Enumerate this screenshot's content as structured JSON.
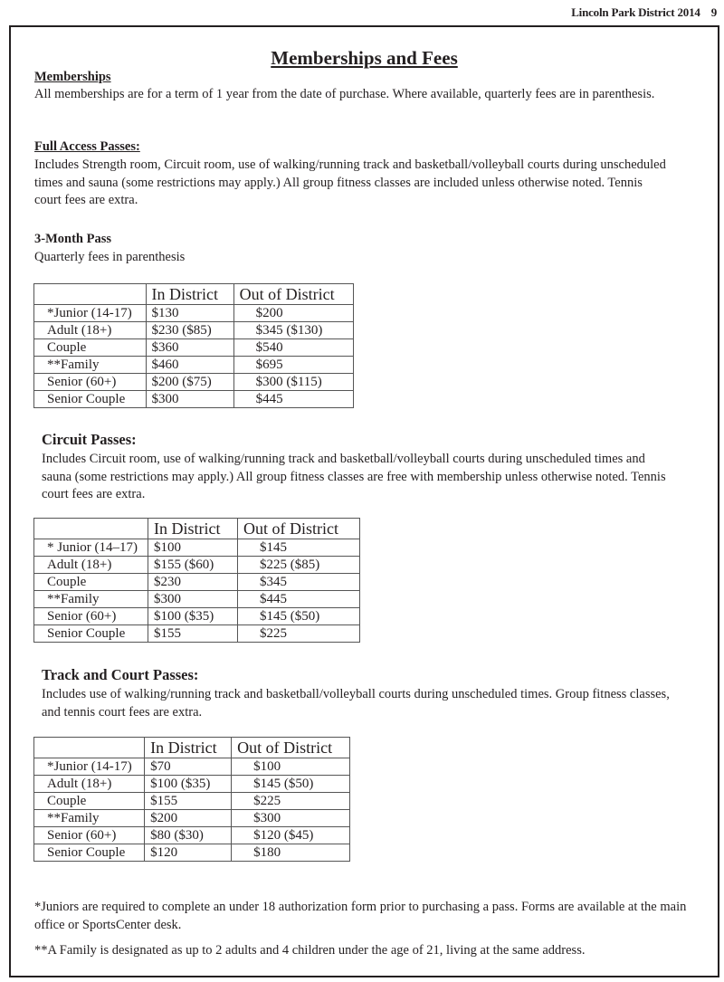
{
  "header": {
    "title": "Lincoln Park District 2014",
    "page": "9"
  },
  "title": "Memberships and Fees",
  "memberships": {
    "heading": "Memberships",
    "text": "All memberships are for a term of 1 year from the date of purchase.  Where available, quarterly fees are in parenthesis."
  },
  "full_access": {
    "heading": "Full Access Passes:",
    "text": "Includes Strength room, Circuit room, use of walking/running track and basketball/volleyball courts during unscheduled times and sauna (some restrictions may apply.)  All group fitness classes are included unless otherwise noted.  Tennis court fees are extra."
  },
  "three_month": {
    "heading": "3-Month Pass",
    "text": "Quarterly fees in parenthesis"
  },
  "table1": {
    "headers": [
      "",
      "In District",
      "Out of District"
    ],
    "rows": [
      [
        "*Junior (14-17)",
        "$130",
        "$200"
      ],
      [
        "Adult (18+)",
        "$230 ($85)",
        "$345 ($130)"
      ],
      [
        "Couple",
        "$360",
        "$540"
      ],
      [
        "**Family",
        "$460",
        "$695"
      ],
      [
        "Senior (60+)",
        "$200 ($75)",
        "$300 ($115)"
      ],
      [
        "Senior Couple",
        "$300",
        "$445"
      ]
    ]
  },
  "circuit": {
    "heading": "Circuit Passes:",
    "text": "Includes Circuit room, use of walking/running track and basketball/volleyball courts during unscheduled times and sauna (some restrictions may apply.) All group fitness classes are free with membership unless otherwise noted. Tennis court fees are extra."
  },
  "table2": {
    "headers": [
      "",
      "In District",
      "Out of District"
    ],
    "rows": [
      [
        "* Junior (14–17)",
        "$100",
        "$145"
      ],
      [
        "Adult (18+)",
        "$155 ($60)",
        "$225 ($85)"
      ],
      [
        "Couple",
        "$230",
        "$345"
      ],
      [
        "**Family",
        "$300",
        "$445"
      ],
      [
        "Senior (60+)",
        "$100 ($35)",
        "$145 ($50)"
      ],
      [
        "Senior Couple",
        "$155",
        "$225"
      ]
    ]
  },
  "track": {
    "heading": "Track and Court Passes:",
    "text": "Includes use of walking/running track and basketball/volleyball courts during unscheduled times.  Group fitness classes, and tennis court fees are extra."
  },
  "table3": {
    "headers": [
      "",
      "In District",
      "Out of District"
    ],
    "rows": [
      [
        "*Junior (14-17)",
        "$70",
        "$100"
      ],
      [
        "Adult (18+)",
        "$100 ($35)",
        "$145 ($50)"
      ],
      [
        "Couple",
        "$155",
        "$225"
      ],
      [
        "**Family",
        "$200",
        "$300"
      ],
      [
        "Senior (60+)",
        "$80 ($30)",
        "$120 ($45)"
      ],
      [
        "Senior Couple",
        "$120",
        "$180"
      ]
    ]
  },
  "notes": [
    "*Juniors are required to complete an under 18 authorization form prior to purchasing a pass.  Forms are available at the main office or SportsCenter desk.",
    "**A Family is designated as up to 2 adults and 4 children under the age of 21, living at the same address."
  ]
}
